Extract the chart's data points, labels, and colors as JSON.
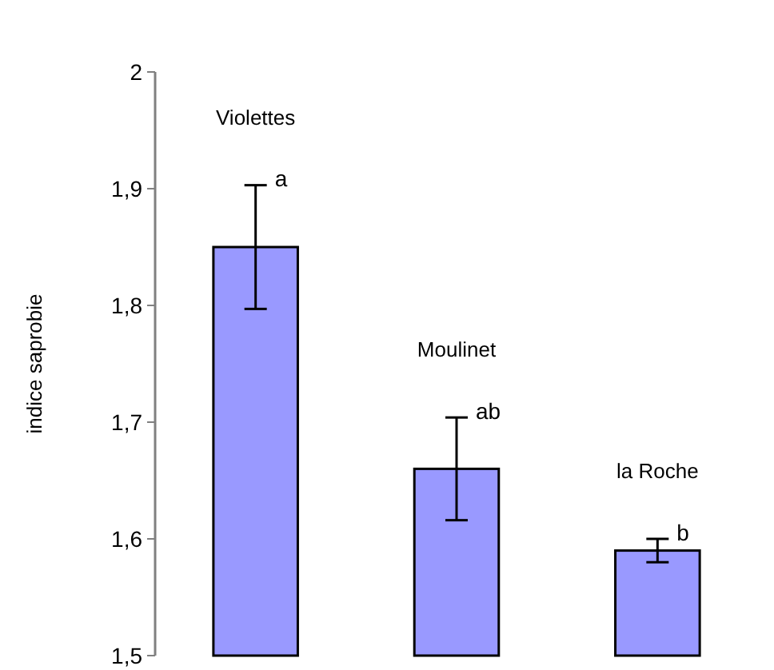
{
  "chart_data": {
    "type": "bar",
    "ylabel": "indice saprobie",
    "categories": [
      "Violettes",
      "Moulinet",
      "la Roche"
    ],
    "values": [
      1.85,
      1.66,
      1.59
    ],
    "errors": [
      0.053,
      0.044,
      0.01
    ],
    "color": "#9999ff",
    "ylim": [
      1.5,
      2
    ],
    "yticks": [
      {
        "value": 1.5,
        "label": "1,5"
      },
      {
        "value": 1.6,
        "label": "1,6"
      },
      {
        "value": 1.7,
        "label": "1,7"
      },
      {
        "value": 1.8,
        "label": "1,8"
      },
      {
        "value": 1.9,
        "label": "1,9"
      },
      {
        "value": 2,
        "label": "2"
      }
    ],
    "grid": false,
    "annotations": [
      {
        "text": "a",
        "x": "Violettes",
        "y": 1.903
      },
      {
        "text": "ab",
        "x": "Moulinet",
        "y": 1.704
      },
      {
        "text": "b",
        "x": "la Roche",
        "y": 1.6
      }
    ]
  }
}
